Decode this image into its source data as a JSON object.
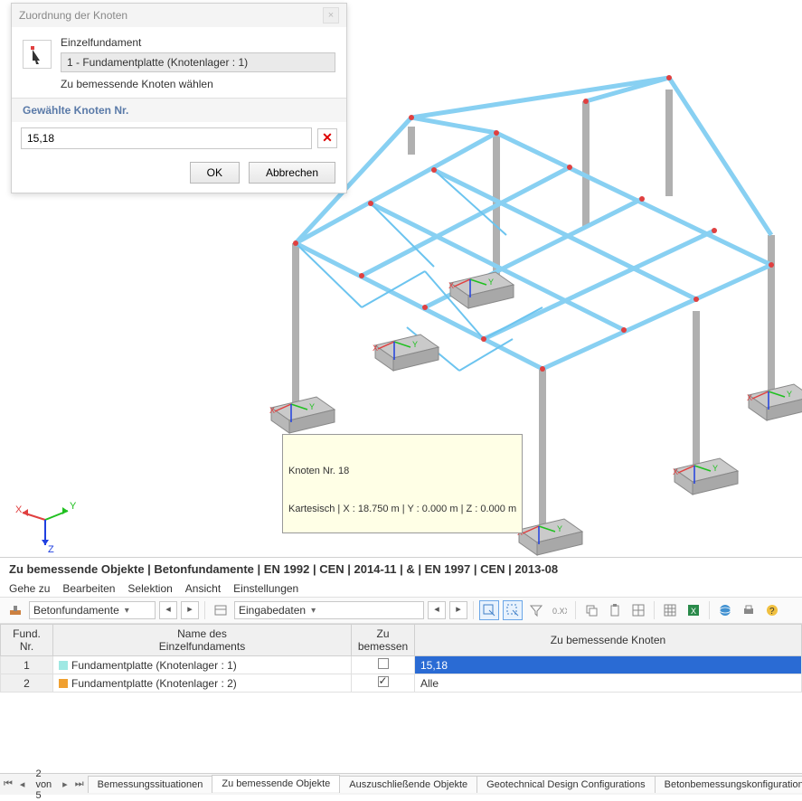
{
  "dialog": {
    "title": "Zuordnung der Knoten",
    "fund_label": "Einzelfundament",
    "fund_item": "1 - Fundamentplatte (Knotenlager : 1)",
    "hint": "Zu bemessende Knoten wählen",
    "section": "Gewählte Knoten Nr.",
    "nodes_value": "15,18",
    "ok": "OK",
    "cancel": "Abbrechen"
  },
  "tooltip": {
    "line1": "Knoten Nr. 18",
    "line2": "Kartesisch | X : 18.750 m | Y : 0.000 m | Z : 0.000 m"
  },
  "panel": {
    "title": "Zu bemessende Objekte | Betonfundamente | EN 1992 | CEN | 2014-11 | & | EN 1997 | CEN | 2013-08",
    "menu": {
      "m1": "Gehe zu",
      "m2": "Bearbeiten",
      "m3": "Selektion",
      "m4": "Ansicht",
      "m5": "Einstellungen"
    },
    "combo1": "Betonfundamente",
    "combo2": "Eingabedaten"
  },
  "table": {
    "h1": "Fund.\nNr.",
    "h2": "Name des\nEinzelfundaments",
    "h3": "Zu\nbemessen",
    "h4": "Zu bemessende Knoten",
    "rows": [
      {
        "nr": "1",
        "color": "#9fe8e3",
        "name": "Fundamentplatte (Knotenlager : 1)",
        "checked": false,
        "nodes": "15,18",
        "selected": true
      },
      {
        "nr": "2",
        "color": "#f0a030",
        "name": "Fundamentplatte (Knotenlager : 2)",
        "checked": true,
        "nodes": "Alle",
        "selected": false
      }
    ]
  },
  "tabs": {
    "page": "2 von 5",
    "t1": "Bemessungssituationen",
    "t2": "Zu bemessende Objekte",
    "t3": "Auszuschließende Objekte",
    "t4": "Geotechnical Design Configurations",
    "t5": "Betonbemessungskonfigurationen"
  },
  "colors": {
    "beam": "#9fd8f5",
    "beam_dark": "#6cc4ef",
    "column": "#b8b8b8",
    "node": "#e04040",
    "x": "#e04040",
    "y": "#20c020",
    "z": "#2040e0",
    "foundation": "#c8c8c8"
  }
}
